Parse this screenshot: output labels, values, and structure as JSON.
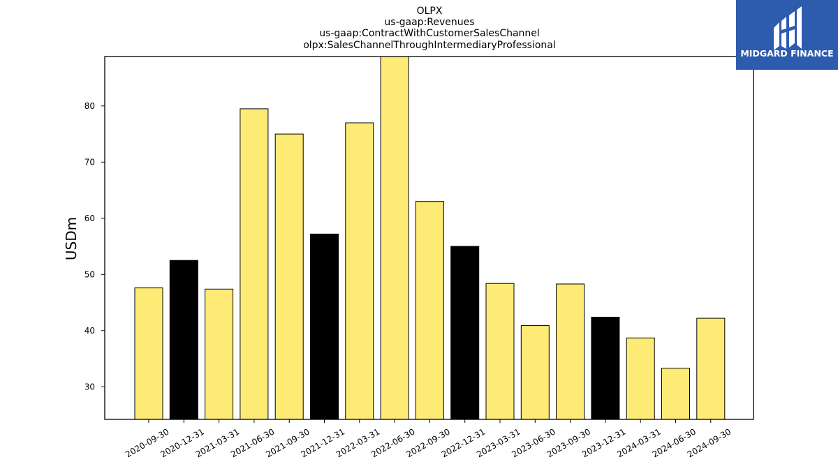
{
  "chart_data": {
    "type": "bar",
    "title_lines": [
      "OLPX",
      "us-gaap:Revenues",
      "us-gaap:ContractWithCustomerSalesChannel",
      "olpx:SalesChannelThroughIntermediaryProfessional"
    ],
    "ylabel": "USDm",
    "xlabel": "",
    "ylim": [
      24.2,
      88.8
    ],
    "yticks": [
      30,
      40,
      50,
      60,
      70,
      80
    ],
    "grid": false,
    "categories": [
      "2020-09-30",
      "2020-12-31",
      "2021-03-31",
      "2021-06-30",
      "2021-09-30",
      "2021-12-31",
      "2022-03-31",
      "2022-06-30",
      "2022-09-30",
      "2022-12-31",
      "2023-03-31",
      "2023-06-30",
      "2023-09-30",
      "2023-12-31",
      "2024-03-31",
      "2024-06-30",
      "2024-09-30"
    ],
    "values": [
      47.6,
      52.5,
      47.4,
      79.5,
      75.0,
      57.2,
      77.0,
      89.5,
      63.0,
      55.0,
      48.4,
      40.9,
      48.3,
      42.4,
      38.7,
      33.3,
      42.2
    ],
    "bar_colors": [
      "#FDEB76",
      "#000000",
      "#FDEB76",
      "#FDEB76",
      "#FDEB76",
      "#000000",
      "#FDEB76",
      "#FDEB76",
      "#FDEB76",
      "#000000",
      "#FDEB76",
      "#FDEB76",
      "#FDEB76",
      "#000000",
      "#FDEB76",
      "#FDEB76",
      "#FDEB76"
    ],
    "bar_edge_color": "#000000"
  },
  "logo": {
    "text": "MIDGARD FINANCE",
    "background": "#2D5BAE",
    "foreground": "#FFFFFF"
  }
}
